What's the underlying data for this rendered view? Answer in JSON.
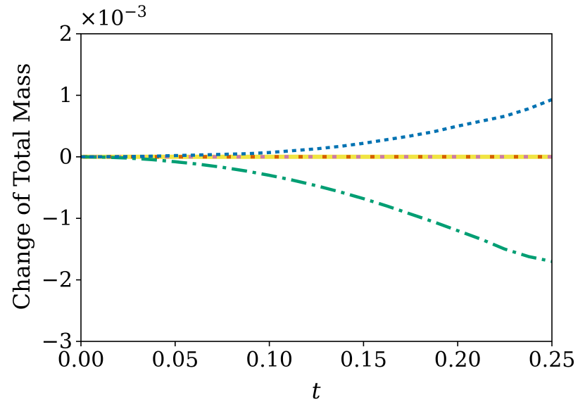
{
  "chart_data": {
    "type": "line",
    "title": "",
    "xlabel": "t",
    "ylabel": "Change of Total Mass",
    "y_scale_label": "×10",
    "y_scale_exponent": "−3",
    "xlim": [
      0.0,
      0.25
    ],
    "ylim": [
      -3,
      2
    ],
    "x_ticks": [
      0.0,
      0.05,
      0.1,
      0.15,
      0.2,
      0.25
    ],
    "x_tick_labels": [
      "0.00",
      "0.05",
      "0.10",
      "0.15",
      "0.20",
      "0.25"
    ],
    "y_ticks": [
      -3,
      -2,
      -1,
      0,
      1,
      2
    ],
    "y_tick_labels": [
      "−3",
      "−2",
      "−1",
      "0",
      "1",
      "2"
    ],
    "y_units_note": "values shown in units of 1e-3",
    "grid": false,
    "legend": "none",
    "x": [
      0.0,
      0.0125,
      0.025,
      0.0375,
      0.05,
      0.0625,
      0.075,
      0.0875,
      0.1,
      0.1125,
      0.125,
      0.1375,
      0.15,
      0.1625,
      0.175,
      0.1875,
      0.2,
      0.2125,
      0.225,
      0.2375,
      0.25
    ],
    "series": [
      {
        "color": "#0072B2",
        "style": "dotted",
        "values": [
          0.0,
          0.001,
          0.004,
          0.01,
          0.02,
          0.03,
          0.04,
          0.05,
          0.07,
          0.1,
          0.13,
          0.17,
          0.22,
          0.28,
          0.34,
          0.41,
          0.5,
          0.58,
          0.66,
          0.78,
          0.93
        ]
      },
      {
        "color": "#009E73",
        "style": "dash-dot",
        "values": [
          0.0,
          -0.005,
          -0.02,
          -0.045,
          -0.08,
          -0.12,
          -0.17,
          -0.23,
          -0.3,
          -0.38,
          -0.47,
          -0.57,
          -0.68,
          -0.8,
          -0.93,
          -1.06,
          -1.2,
          -1.34,
          -1.5,
          -1.62,
          -1.7
        ]
      },
      {
        "color": "#F0E442",
        "style": "solid",
        "values": [
          0,
          0,
          0,
          0,
          0,
          0,
          0,
          0,
          0,
          0,
          0,
          0,
          0,
          0,
          0,
          0,
          0,
          0,
          0,
          0,
          0
        ]
      },
      {
        "color": "#D55E00",
        "style": "dashed",
        "values": [
          0,
          0,
          0,
          0,
          0,
          0,
          0,
          0,
          0,
          0,
          0,
          0,
          0,
          0,
          0,
          0,
          0,
          0,
          0,
          0,
          0
        ]
      },
      {
        "color": "#CC79A7",
        "style": "dashed",
        "values": [
          0,
          0,
          0,
          0,
          0,
          0,
          0,
          0,
          0,
          0,
          0,
          0,
          0,
          0,
          0,
          0,
          0,
          0,
          0,
          0,
          0
        ]
      }
    ]
  }
}
